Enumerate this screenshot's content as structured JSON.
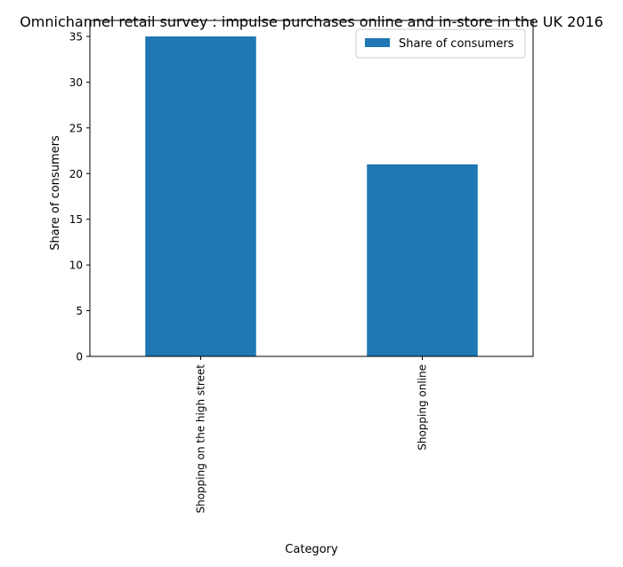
{
  "chart_data": {
    "type": "bar",
    "title": "Omnichannel retail survey : impulse purchases online and in-store in the UK 2016",
    "xlabel": "Category",
    "ylabel": "Share of consumers",
    "categories": [
      "Shopping on the high street",
      "Shopping online"
    ],
    "series": [
      {
        "name": "Share of consumers",
        "values": [
          35,
          21
        ],
        "color": "#1f77b4"
      }
    ],
    "ylim": [
      0,
      36.75
    ],
    "yticks": [
      0,
      5,
      10,
      15,
      20,
      25,
      30,
      35
    ],
    "grid": false,
    "legend_position": "top-right"
  }
}
